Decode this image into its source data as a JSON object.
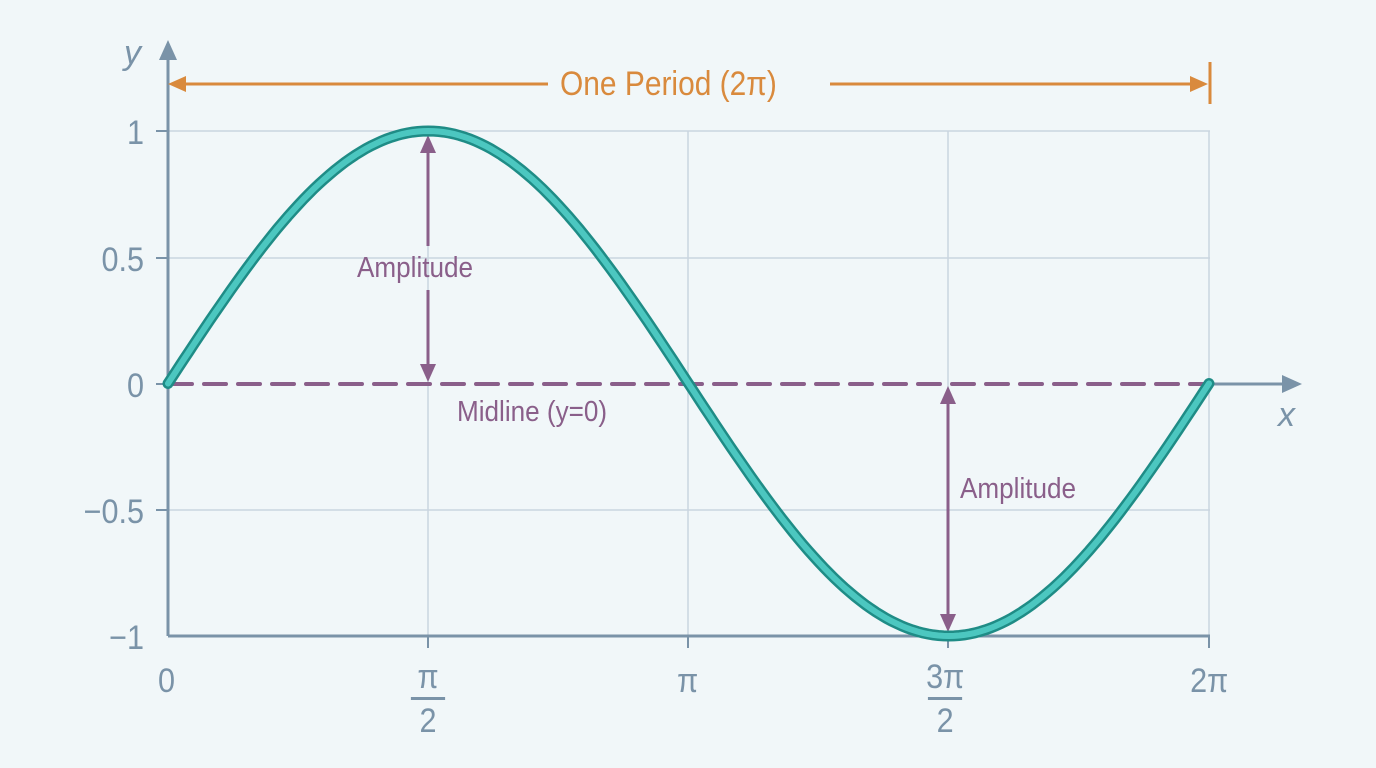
{
  "chart_data": {
    "type": "line",
    "title": "",
    "function": "y = sin(x)",
    "xlabel": "x",
    "ylabel": "y",
    "xlim": [
      0,
      6.2832
    ],
    "ylim": [
      -1,
      1
    ],
    "grid": true,
    "x_ticks": [
      "0",
      "π/2",
      "π",
      "3π/2",
      "2π"
    ],
    "x_tick_values": [
      0,
      1.5708,
      3.1416,
      4.7124,
      6.2832
    ],
    "y_ticks": [
      "1",
      "0.5",
      "0",
      "−0.5",
      "−1"
    ],
    "y_tick_values": [
      1,
      0.5,
      0,
      -0.5,
      -1
    ],
    "series": [
      {
        "name": "sin(x)",
        "color": "#3fbfb8",
        "x": [
          0,
          0.7854,
          1.5708,
          2.3562,
          3.1416,
          3.927,
          4.7124,
          5.4978,
          6.2832
        ],
        "y": [
          0,
          0.707,
          1,
          0.707,
          0,
          -0.707,
          -1,
          -0.707,
          0
        ]
      }
    ],
    "annotations": [
      {
        "type": "period-arrow",
        "text": "One Period (2π)",
        "from_x": 0,
        "to_x": 6.2832,
        "color": "#d98a3d"
      },
      {
        "type": "amplitude-arrow",
        "text": "Amplitude",
        "x": 1.5708,
        "from_y": 0,
        "to_y": 1,
        "color": "#8a5f8a"
      },
      {
        "type": "amplitude-arrow",
        "text": "Amplitude",
        "x": 4.7124,
        "from_y": 0,
        "to_y": -1,
        "color": "#8a5f8a"
      },
      {
        "type": "midline",
        "text": "Midline (y=0)",
        "y": 0,
        "style": "dashed",
        "color": "#8a5f8a"
      }
    ],
    "legend": null
  },
  "labels": {
    "y_axis": "y",
    "x_axis": "x",
    "period": "One Period (2π)",
    "amplitude_top": "Amplitude",
    "amplitude_bottom": "Amplitude",
    "midline": "Midline (y=0)",
    "y_ticks": [
      "1",
      "0.5",
      "0",
      "−0.5",
      "−1"
    ],
    "x_ticks": {
      "zero": "0",
      "half_pi_num": "π",
      "half_pi_den": "2",
      "pi": "π",
      "three_half_pi_num": "3π",
      "three_half_pi_den": "2",
      "two_pi": "2π"
    }
  },
  "colors": {
    "background": "#f1f7f9",
    "axis": "#7a93a8",
    "grid": "#c9d5df",
    "curve_fill": "#4cc7c0",
    "curve_edge": "#1f8c86",
    "annotation": "#8a5f8a",
    "period": "#d98a3d"
  }
}
